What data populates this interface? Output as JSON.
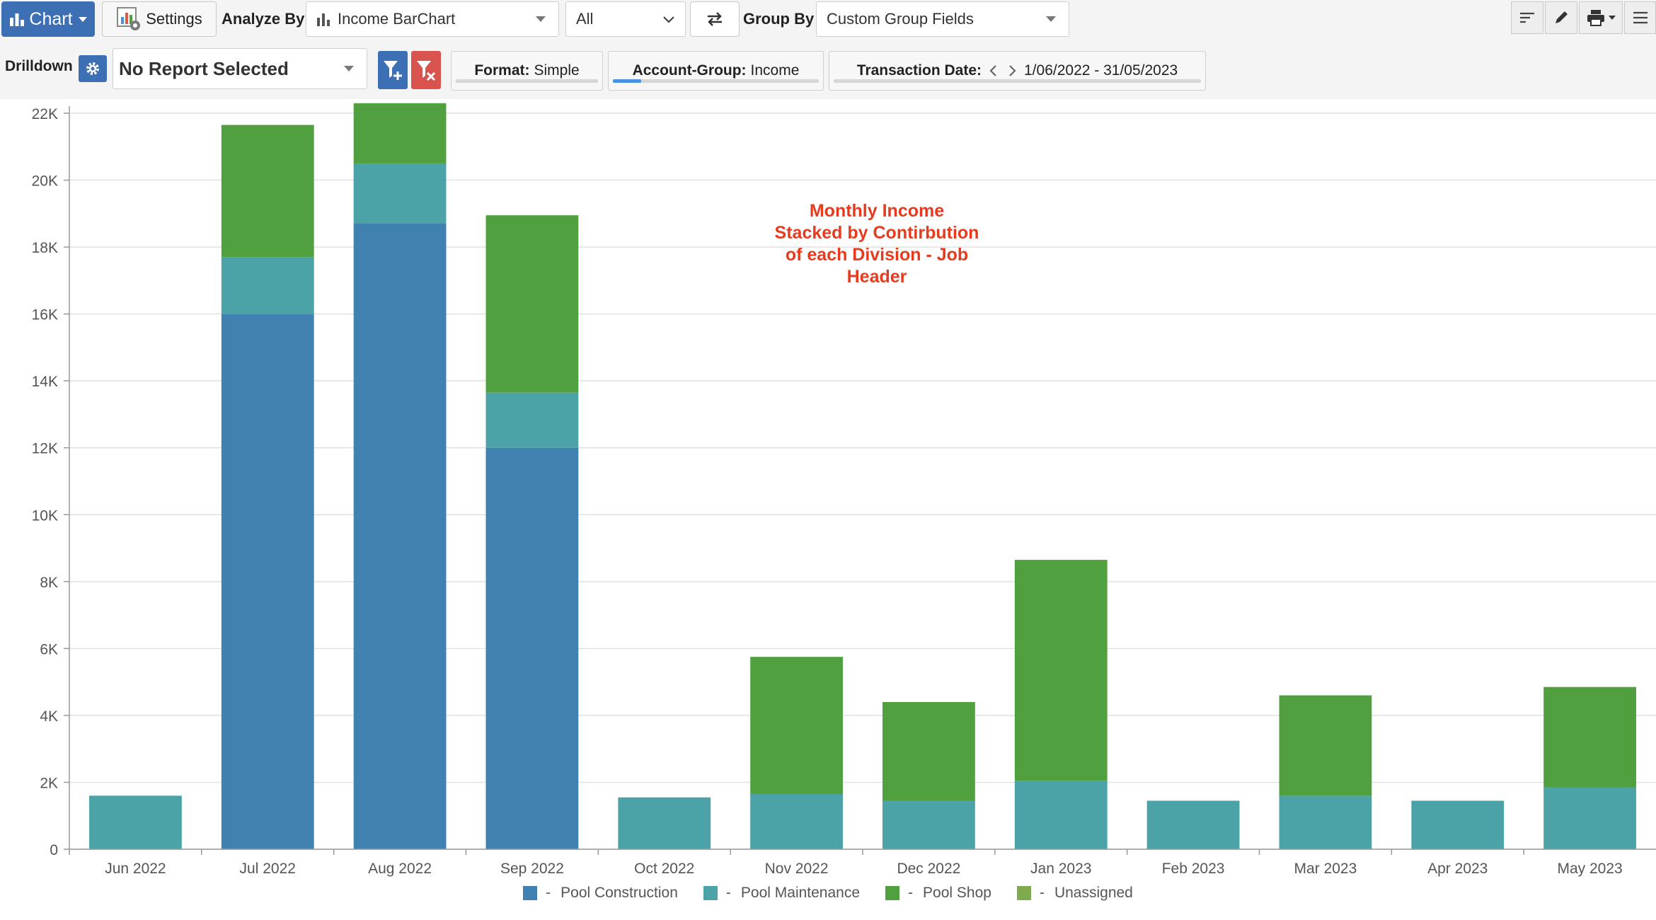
{
  "toolbar": {
    "chart_button": "Chart",
    "settings_button": "Settings",
    "analyze_by_label": "Analyze By",
    "analyze_by_value": "Income BarChart",
    "filter_value": "All",
    "group_by_label": "Group By",
    "group_by_value": "Custom Group Fields"
  },
  "drilldown": {
    "label": "Drilldown",
    "report_value": "No Report Selected"
  },
  "filters": {
    "format_key": "Format:",
    "format_value": "Simple",
    "account_group_key": "Account-Group:",
    "account_group_value": "Income",
    "transaction_date_key": "Transaction Date:",
    "transaction_date_value": "1/06/2022 - 31/05/2023"
  },
  "annotation": [
    "Monthly Income",
    "Stacked by Contirbution",
    "of each Division - Job",
    "Header"
  ],
  "colors": {
    "pool_construction": "#4081b1",
    "pool_maintenance": "#4ba3a8",
    "pool_shop": "#51a040",
    "unassigned": "#7fab4f",
    "annotation": "#e63b1f",
    "chart_button": "#3d6fb5"
  },
  "chart_data": {
    "type": "bar",
    "stacked": true,
    "categories": [
      "Jun 2022",
      "Jul 2022",
      "Aug 2022",
      "Sep 2022",
      "Oct 2022",
      "Nov 2022",
      "Dec 2022",
      "Jan 2023",
      "Feb 2023",
      "Mar 2023",
      "Apr 2023",
      "May 2023"
    ],
    "series": [
      {
        "name": "Pool Construction",
        "values": [
          0,
          16000,
          18700,
          12000,
          0,
          0,
          0,
          0,
          0,
          0,
          0,
          0
        ]
      },
      {
        "name": "Pool Maintenance",
        "values": [
          1600,
          1700,
          1800,
          1650,
          1550,
          1650,
          1450,
          2050,
          1450,
          1600,
          1450,
          1850
        ]
      },
      {
        "name": "Pool Shop",
        "values": [
          0,
          3950,
          1800,
          5300,
          0,
          4100,
          2950,
          6600,
          0,
          3000,
          0,
          3000
        ]
      },
      {
        "name": "Unassigned",
        "values": [
          0,
          0,
          0,
          0,
          0,
          0,
          0,
          0,
          0,
          0,
          0,
          0
        ]
      }
    ],
    "yticks": [
      "0",
      "2K",
      "4K",
      "6K",
      "8K",
      "10K",
      "12K",
      "14K",
      "16K",
      "18K",
      "20K",
      "22K"
    ],
    "ylim": [
      0,
      22000
    ],
    "grid": true,
    "legend": "bottom"
  }
}
